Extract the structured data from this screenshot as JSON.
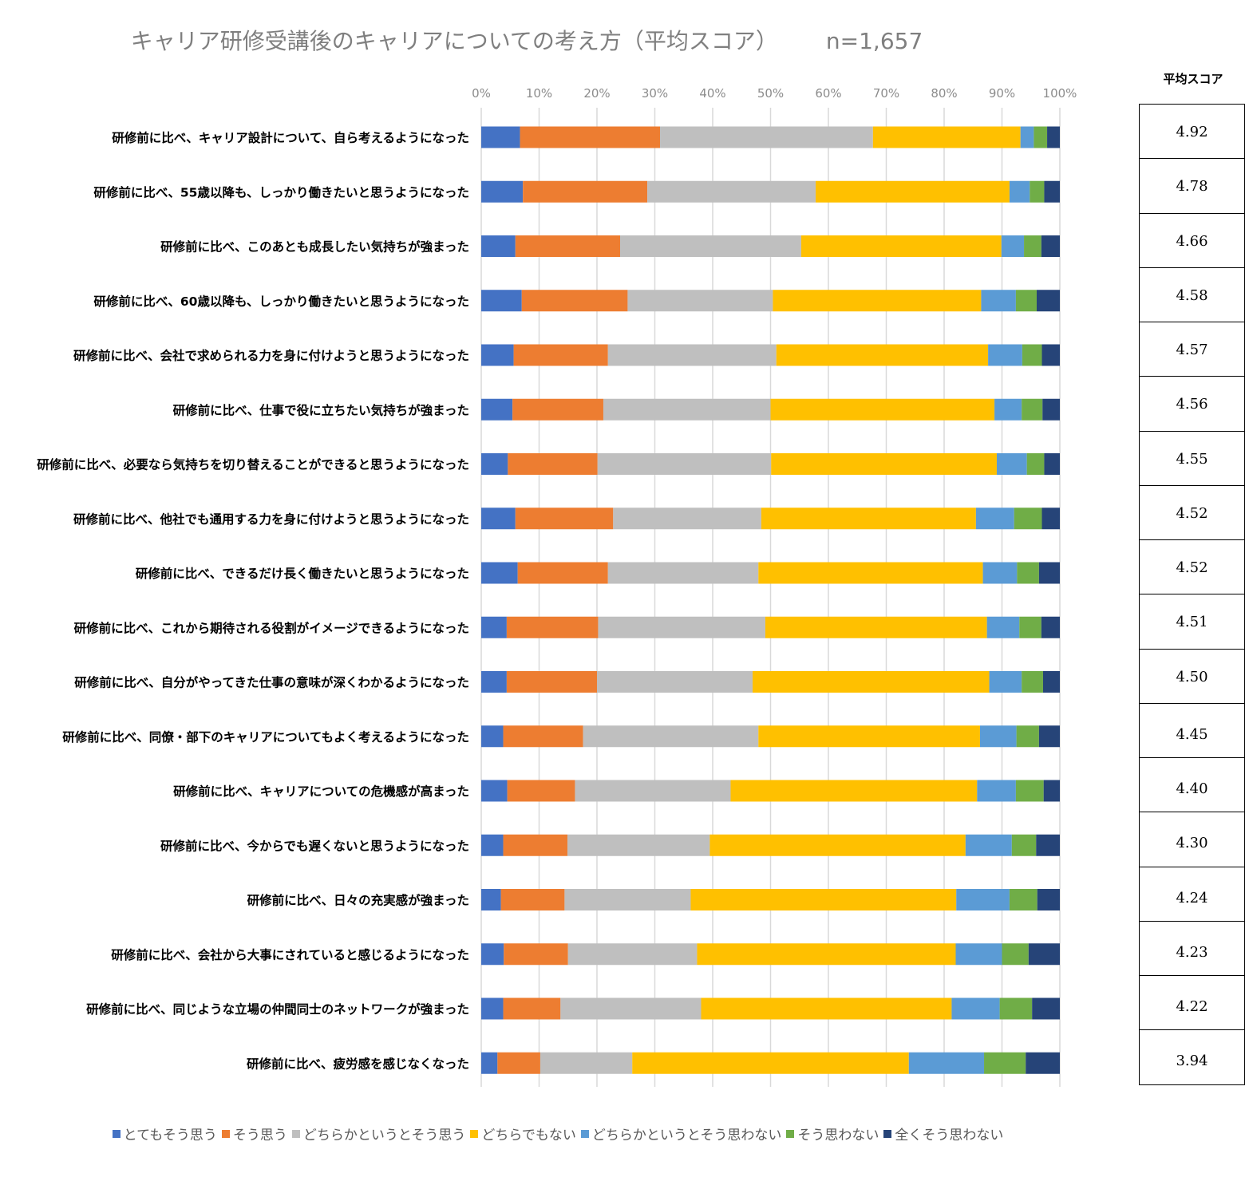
{
  "chart_data": {
    "type": "bar",
    "orientation": "horizontal",
    "stacked": true,
    "title": "キャリア研修受講後のキャリアについての考え方（平均スコア）",
    "sample_size": "n=1,657",
    "xlim": [
      0,
      100
    ],
    "x_ticks": [
      "0%",
      "10%",
      "20%",
      "30%",
      "40%",
      "50%",
      "60%",
      "70%",
      "80%",
      "90%",
      "100%"
    ],
    "grid": "vertical",
    "legend_position": "bottom",
    "score_header": "平均スコア",
    "categories": [
      "研修前に比べ、キャリア設計について、自ら考えるようになった",
      "研修前に比べ、55歳以降も、しっかり働きたいと思うようになった",
      "研修前に比べ、このあとも成長したい気持ちが強まった",
      "研修前に比べ、60歳以降も、しっかり働きたいと思うようになった",
      "研修前に比べ、会社で求められる力を身に付けようと思うようになった",
      "研修前に比べ、仕事で役に立ちたい気持ちが強まった",
      "研修前に比べ、必要なら気持ちを切り替えることができると思うようになった",
      "研修前に比べ、他社でも通用する力を身に付けようと思うようになった",
      "研修前に比べ、できるだけ長く働きたいと思うようになった",
      "研修前に比べ、これから期待される役割がイメージできるようになった",
      "研修前に比べ、自分がやってきた仕事の意味が深くわかるようになった",
      "研修前に比べ、同僚・部下のキャリアについてもよく考えるようになった",
      "研修前に比べ、キャリアについての危機感が高まった",
      "研修前に比べ、今からでも遅くないと思うようになった",
      "研修前に比べ、日々の充実感が強まった",
      "研修前に比べ、会社から大事にされていると感じるようになった",
      "研修前に比べ、同じような立場の仲間同士のネットワークが強まった",
      "研修前に比べ、疲労感を感じなくなった"
    ],
    "series": [
      {
        "name": "とてもそう思う",
        "color": "#4472C4",
        "values": [
          6.7,
          7.2,
          5.9,
          7.0,
          5.6,
          5.4,
          4.6,
          5.9,
          6.3,
          4.4,
          4.4,
          3.8,
          4.5,
          3.8,
          3.4,
          3.9,
          3.8,
          2.8
        ]
      },
      {
        "name": "そう思う",
        "color": "#ED7D31",
        "values": [
          24.2,
          21.5,
          18.1,
          18.3,
          16.3,
          15.7,
          15.5,
          16.9,
          15.6,
          15.8,
          15.6,
          13.8,
          11.7,
          11.1,
          11.0,
          11.1,
          9.9,
          7.4
        ]
      },
      {
        "name": "どちらかというとそう思う",
        "color": "#BFBFBF",
        "values": [
          36.8,
          29.1,
          31.3,
          25.1,
          29.1,
          28.9,
          30.0,
          25.6,
          26.0,
          28.9,
          26.9,
          30.3,
          26.9,
          24.6,
          21.8,
          22.3,
          24.3,
          15.9
        ]
      },
      {
        "name": "どちらでもない",
        "color": "#FFC000",
        "values": [
          25.5,
          33.5,
          34.6,
          36.0,
          36.6,
          38.7,
          39.0,
          37.1,
          38.8,
          38.3,
          40.9,
          38.3,
          42.6,
          44.2,
          45.9,
          44.7,
          43.3,
          47.8
        ]
      },
      {
        "name": "どちらかというとそう思わない",
        "color": "#5B9BD5",
        "values": [
          2.3,
          3.5,
          3.9,
          6.0,
          5.9,
          4.7,
          5.2,
          6.6,
          5.9,
          5.6,
          5.6,
          6.3,
          6.7,
          8.0,
          9.2,
          8.0,
          8.3,
          13.0
        ]
      },
      {
        "name": "そう思わない",
        "color": "#70AD47",
        "values": [
          2.3,
          2.5,
          3.0,
          3.6,
          3.4,
          3.6,
          3.0,
          4.8,
          3.8,
          3.8,
          3.7,
          3.9,
          4.8,
          4.2,
          4.8,
          4.6,
          5.6,
          7.2
        ]
      },
      {
        "name": "全くそう思わない",
        "color": "#264478",
        "values": [
          2.2,
          2.7,
          3.2,
          4.0,
          3.1,
          3.0,
          2.7,
          3.1,
          3.6,
          3.2,
          2.9,
          3.6,
          2.8,
          4.1,
          3.9,
          5.4,
          4.8,
          5.9
        ]
      }
    ],
    "scores": [
      "4.92",
      "4.78",
      "4.66",
      "4.58",
      "4.57",
      "4.56",
      "4.55",
      "4.52",
      "4.52",
      "4.51",
      "4.50",
      "4.45",
      "4.40",
      "4.30",
      "4.24",
      "4.23",
      "4.22",
      "3.94"
    ]
  }
}
